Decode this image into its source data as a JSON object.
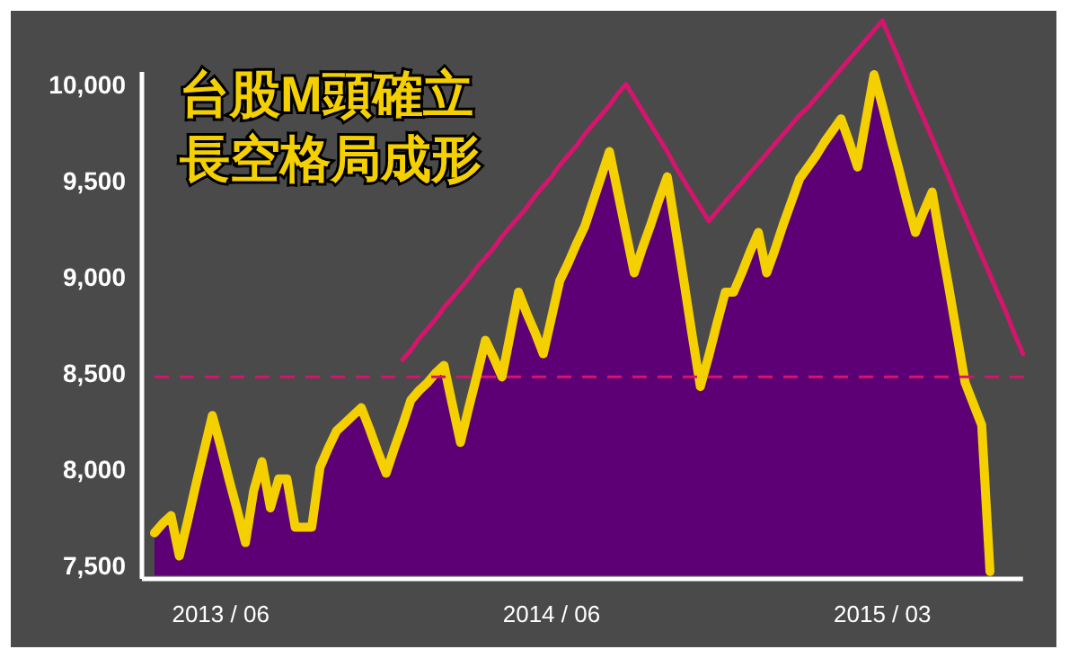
{
  "chart_data": {
    "type": "area",
    "title": "台股M頭確立",
    "subtitle": "長空格局成形",
    "categories": [
      null,
      null,
      null,
      null,
      null,
      null,
      null,
      null,
      "2013 / 06",
      null,
      null,
      null,
      null,
      null,
      null,
      null,
      null,
      null,
      null,
      null,
      null,
      null,
      null,
      null,
      null,
      null,
      null,
      null,
      null,
      null,
      null,
      null,
      null,
      null,
      null,
      null,
      null,
      null,
      null,
      null,
      null,
      null,
      null,
      null,
      null,
      null,
      null,
      null,
      "2014 / 06",
      null,
      null,
      null,
      null,
      null,
      null,
      null,
      null,
      null,
      null,
      null,
      null,
      null,
      null,
      null,
      null,
      null,
      null,
      null,
      null,
      null,
      null,
      null,
      null,
      null,
      null,
      null,
      null,
      null,
      null,
      null,
      null,
      null,
      null,
      null,
      null,
      null,
      null,
      null,
      "2015 / 03",
      null,
      null,
      null,
      null,
      null,
      null,
      null,
      null,
      null,
      null,
      null,
      null,
      null,
      null,
      null,
      null,
      null,
      null
    ],
    "ylim": [
      7450,
      10400
    ],
    "yticks": [
      {
        "value": 7500,
        "label": "7,500"
      },
      {
        "value": 8000,
        "label": "8,000"
      },
      {
        "value": 8500,
        "label": "8,500"
      },
      {
        "value": 9000,
        "label": "9,000"
      },
      {
        "value": 9500,
        "label": "9,500"
      },
      {
        "value": 10000,
        "label": "10,000"
      }
    ],
    "ref_lines": [
      {
        "axis": "y",
        "value": 8480,
        "color": "#d4156e",
        "line_style": "dashed"
      }
    ],
    "series": [
      {
        "color": "#5e0075",
        "values": [
          7670,
          7720,
          7760,
          7550,
          7730,
          7920,
          8100,
          8280,
          8120,
          7950,
          7790,
          7620,
          7890,
          8040,
          7800,
          7950,
          7950,
          7700,
          7700,
          7700,
          8010,
          8110,
          8200,
          8240,
          8280,
          8320,
          8210,
          8090,
          7980,
          8110,
          8230,
          8360,
          8410,
          8450,
          8500,
          8540,
          8340,
          8140,
          8320,
          8490,
          8670,
          8580,
          8480,
          8700,
          8920,
          8810,
          8710,
          8600,
          8790,
          8980,
          9070,
          9170,
          9260,
          9390,
          9520,
          9650,
          9440,
          9230,
          9020,
          9150,
          9270,
          9400,
          9520,
          9250,
          8980,
          8700,
          8430,
          8590,
          8760,
          8920,
          8920,
          9020,
          9130,
          9230,
          9020,
          9140,
          9270,
          9390,
          9510,
          9570,
          9630,
          9700,
          9760,
          9820,
          9700,
          9570,
          9810,
          10050,
          9890,
          9720,
          9560,
          9390,
          9230,
          9340,
          9440,
          9190,
          8950,
          8700,
          8450,
          8340,
          8230,
          7470,
          null,
          null,
          null,
          null,
          null
        ]
      },
      {
        "type": "line",
        "color": "#f5d000",
        "values": [
          7670,
          7720,
          7760,
          7550,
          7730,
          7920,
          8100,
          8280,
          8120,
          7950,
          7790,
          7620,
          7890,
          8040,
          7800,
          7950,
          7950,
          7700,
          7700,
          7700,
          8010,
          8110,
          8200,
          8240,
          8280,
          8320,
          8210,
          8090,
          7980,
          8110,
          8230,
          8360,
          8410,
          8450,
          8500,
          8540,
          8340,
          8140,
          8320,
          8490,
          8670,
          8580,
          8480,
          8700,
          8920,
          8810,
          8710,
          8600,
          8790,
          8980,
          9070,
          9170,
          9260,
          9390,
          9520,
          9650,
          9440,
          9230,
          9020,
          9150,
          9270,
          9400,
          9520,
          9250,
          8980,
          8700,
          8430,
          8590,
          8760,
          8920,
          8920,
          9020,
          9130,
          9230,
          9020,
          9140,
          9270,
          9390,
          9510,
          9570,
          9630,
          9700,
          9760,
          9820,
          9700,
          9570,
          9810,
          10050,
          9890,
          9720,
          9560,
          9390,
          9230,
          9340,
          9440,
          9190,
          8950,
          8700,
          8450,
          8340,
          8230,
          7470,
          null,
          null,
          null,
          null,
          null
        ]
      },
      {
        "type": "line",
        "color": "#d4156e",
        "values": [
          null,
          null,
          null,
          null,
          null,
          null,
          null,
          null,
          null,
          null,
          null,
          null,
          null,
          null,
          null,
          null,
          null,
          null,
          null,
          null,
          null,
          null,
          null,
          null,
          null,
          null,
          null,
          null,
          null,
          null,
          8570,
          8620,
          8680,
          8730,
          8780,
          8840,
          8890,
          8940,
          8990,
          9050,
          9100,
          9150,
          9210,
          9260,
          9310,
          9360,
          9420,
          9470,
          9520,
          9580,
          9630,
          9680,
          9740,
          9790,
          9840,
          9890,
          9950,
          10000,
          9930,
          9860,
          9790,
          9720,
          9650,
          9570,
          9500,
          9430,
          9360,
          9290,
          9340,
          9390,
          9440,
          9490,
          9540,
          9590,
          9640,
          9690,
          9740,
          9790,
          9840,
          9880,
          9930,
          9980,
          10030,
          10080,
          10130,
          10180,
          10230,
          10280,
          10330,
          10230,
          10130,
          10020,
          9920,
          9820,
          9720,
          9620,
          9520,
          9410,
          9310,
          9210,
          9110,
          9010,
          8910,
          8810,
          8700,
          8600,
          null
        ]
      }
    ]
  }
}
